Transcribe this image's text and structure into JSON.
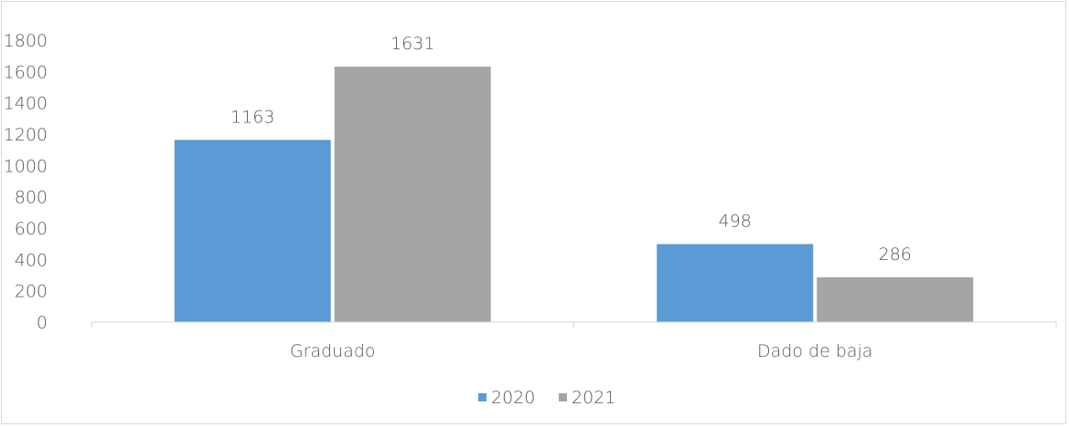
{
  "chart_data": {
    "type": "bar",
    "title": "",
    "xlabel": "",
    "ylabel": "",
    "categories": [
      "Graduado",
      "Dado de baja"
    ],
    "series": [
      {
        "name": "2020",
        "values": [
          1163,
          498
        ],
        "color": "#5b9bd5"
      },
      {
        "name": "2021",
        "values": [
          1631,
          286
        ],
        "color": "#a5a5a5"
      }
    ],
    "ylim": [
      0,
      1800
    ],
    "yticks": [
      0,
      200,
      400,
      600,
      800,
      1000,
      1200,
      1400,
      1600,
      1800
    ],
    "grid": false,
    "data_labels": true,
    "legend_position": "bottom",
    "axis_color": "#d9d9d9",
    "text_color": "#595959"
  }
}
